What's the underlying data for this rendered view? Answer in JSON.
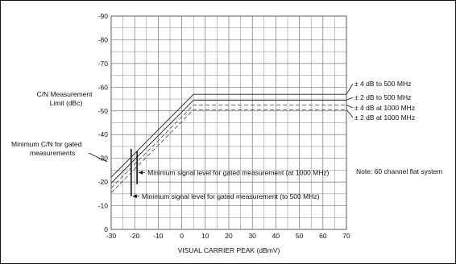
{
  "chart_data": {
    "type": "line",
    "x_ticks": [
      "-30",
      "-20",
      "-10",
      "0",
      "10",
      "20",
      "30",
      "40",
      "50",
      "60",
      "70"
    ],
    "y_ticks": [
      "-90",
      "-80",
      "-70",
      "-60",
      "-50",
      "-40",
      "-30",
      "-20",
      "-10",
      "0"
    ],
    "xlim": [
      -30,
      70
    ],
    "ylim": [
      0,
      -90
    ],
    "xlabel": "VISUAL CARRIER PEAK (dBmV)",
    "ylabel": "C/N Measurement Limit (dBc)",
    "grid": true,
    "series": [
      {
        "name": "± 4 dB to 500 MHz",
        "style": "solid",
        "color": "#222222",
        "x": [
          -30,
          5,
          70
        ],
        "y": [
          -22,
          -57,
          -57
        ]
      },
      {
        "name": "± 2 dB to 500 MHz",
        "style": "solid",
        "color": "#222222",
        "x": [
          -30,
          5,
          70
        ],
        "y": [
          -19.5,
          -54.5,
          -54.5
        ]
      },
      {
        "name": "± 4 dB at 1000 MHz",
        "style": "dashed",
        "color": "#555555",
        "x": [
          -30,
          5,
          70
        ],
        "y": [
          -17.5,
          -52.5,
          -52.5
        ]
      },
      {
        "name": "± 2 dB at 1000 MHz",
        "style": "dashed",
        "color": "#555555",
        "x": [
          -30,
          5,
          70
        ],
        "y": [
          -15.5,
          -50.5,
          -50.5
        ]
      }
    ],
    "vertical_markers": [
      {
        "x": -21.5,
        "y_from": -14,
        "y_to": -34,
        "label": "Minimum signal level for gated measurement (to 500 MHz)",
        "label_y": -14
      },
      {
        "x": -19,
        "y_from": -19,
        "y_to": -33,
        "label": "Minimum signal level for gated measurement (at 1000 MHz)",
        "label_y": -24
      }
    ],
    "annotations": {
      "ylabel_line1": "C/N Measurement",
      "ylabel_line2": "Limit (dBc)",
      "min_cn_line1": "Minimum C/N for gated",
      "min_cn_line2": "measurements",
      "note": "Note: 60 channel flat system"
    }
  }
}
